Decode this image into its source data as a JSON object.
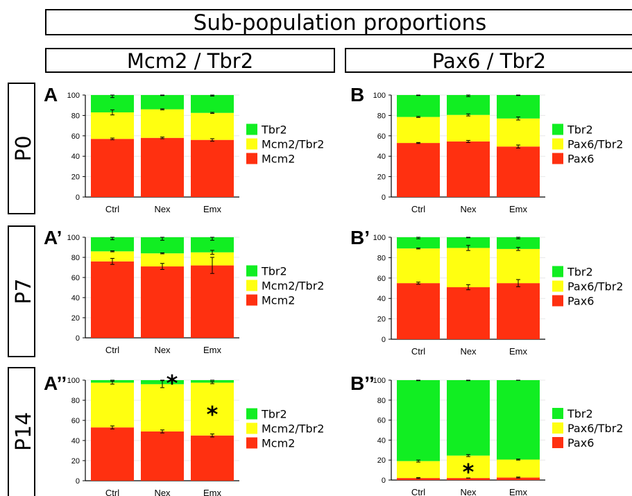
{
  "title": "Sub-population proportions",
  "columns": [
    "Mcm2 / Tbr2",
    "Pax6 / Tbr2"
  ],
  "rows": [
    "P0",
    "P7",
    "P14"
  ],
  "colors": {
    "green": "#11ee22",
    "yellow": "#ffff10",
    "red": "#ff3010",
    "text": "#000000"
  },
  "chart_data": [
    {
      "panel": "A",
      "type": "bar",
      "stacked": true,
      "categories": [
        "Ctrl",
        "Nex",
        "Emx"
      ],
      "series": [
        {
          "name": "Mcm2",
          "color": "#ff3010",
          "values": [
            57,
            58,
            56
          ],
          "errors": [
            0.8,
            0.8,
            1.2
          ]
        },
        {
          "name": "Mcm2/Tbr2",
          "color": "#ffff10",
          "values": [
            26,
            28,
            26.5
          ],
          "errors": [
            2.5,
            0.5,
            0.5
          ]
        },
        {
          "name": "Tbr2",
          "color": "#11ee22",
          "values": [
            17,
            14,
            17.5
          ],
          "errors": [
            2.5,
            0.5,
            1
          ]
        }
      ],
      "ylim": [
        0,
        100
      ],
      "yticks": [
        0,
        20,
        40,
        60,
        80,
        100
      ],
      "legend": "right",
      "annotations": []
    },
    {
      "panel": "B",
      "type": "bar",
      "stacked": true,
      "categories": [
        "Ctrl",
        "Nex",
        "Emx"
      ],
      "series": [
        {
          "name": "Pax6",
          "color": "#ff3010",
          "values": [
            53,
            54.5,
            49.5
          ],
          "errors": [
            0.5,
            1,
            1.5
          ]
        },
        {
          "name": "Pax6/Tbr2",
          "color": "#ffff10",
          "values": [
            25.5,
            26,
            27.5
          ],
          "errors": [
            0.5,
            1,
            1.5
          ]
        },
        {
          "name": "Tbr2",
          "color": "#11ee22",
          "values": [
            21.5,
            19.5,
            23
          ],
          "errors": [
            0.5,
            1.5,
            0.5
          ]
        }
      ],
      "ylim": [
        0,
        100
      ],
      "yticks": [
        0,
        20,
        40,
        60,
        80,
        100
      ],
      "legend": "right",
      "annotations": []
    },
    {
      "panel": "A’",
      "type": "bar",
      "stacked": true,
      "categories": [
        "Ctrl",
        "Nex",
        "Emx"
      ],
      "series": [
        {
          "name": "Mcm2",
          "color": "#ff3010",
          "values": [
            76,
            71,
            72
          ],
          "errors": [
            3,
            3,
            8
          ]
        },
        {
          "name": "Mcm2/Tbr2",
          "color": "#ffff10",
          "values": [
            10,
            13,
            13
          ],
          "errors": [
            0.5,
            0.5,
            2
          ]
        },
        {
          "name": "Tbr2",
          "color": "#11ee22",
          "values": [
            14,
            16,
            15
          ],
          "errors": [
            2.5,
            3,
            3
          ]
        }
      ],
      "ylim": [
        0,
        100
      ],
      "yticks": [
        0,
        20,
        40,
        60,
        80,
        100
      ],
      "legend": "right",
      "annotations": []
    },
    {
      "panel": "B’",
      "type": "bar",
      "stacked": true,
      "categories": [
        "Ctrl",
        "Nex",
        "Emx"
      ],
      "series": [
        {
          "name": "Pax6",
          "color": "#ff3010",
          "values": [
            55,
            51,
            55
          ],
          "errors": [
            1,
            2.5,
            3.5
          ]
        },
        {
          "name": "Pax6/Tbr2",
          "color": "#ffff10",
          "values": [
            34,
            38.5,
            33.5
          ],
          "errors": [
            0.5,
            2.5,
            1.5
          ]
        },
        {
          "name": "Tbr2",
          "color": "#11ee22",
          "values": [
            11,
            10.5,
            11.5
          ],
          "errors": [
            1.5,
            0.5,
            1.5
          ]
        }
      ],
      "ylim": [
        0,
        100
      ],
      "yticks": [
        0,
        20,
        40,
        60,
        80,
        100
      ],
      "legend": "right",
      "annotations": []
    },
    {
      "panel": "A’’",
      "type": "bar",
      "stacked": true,
      "categories": [
        "Ctrl",
        "Nex",
        "Emx"
      ],
      "series": [
        {
          "name": "Mcm2",
          "color": "#ff3010",
          "values": [
            53,
            49,
            45
          ],
          "errors": [
            1.5,
            1.5,
            1.5
          ]
        },
        {
          "name": "Mcm2/Tbr2",
          "color": "#ffff10",
          "values": [
            44.5,
            47,
            52.5
          ],
          "errors": [
            1.5,
            3.5,
            1
          ]
        },
        {
          "name": "Tbr2",
          "color": "#11ee22",
          "values": [
            2.5,
            4,
            2.5
          ],
          "errors": [
            0,
            0,
            0
          ]
        }
      ],
      "ylim": [
        0,
        100
      ],
      "yticks": [
        0,
        20,
        40,
        60,
        80,
        100
      ],
      "legend": "right",
      "annotations": [
        {
          "text": "*",
          "category": "Nex",
          "y": 99
        },
        {
          "text": "*",
          "category": "Emx",
          "y": 68
        }
      ]
    },
    {
      "panel": "B’’",
      "type": "bar",
      "stacked": true,
      "categories": [
        "Ctrl",
        "Nex",
        "Emx"
      ],
      "series": [
        {
          "name": "Pax6",
          "color": "#ff3010",
          "values": [
            2,
            2,
            2.5
          ],
          "errors": [
            0.5,
            0,
            0.5
          ]
        },
        {
          "name": "Pax6/Tbr2",
          "color": "#ffff10",
          "values": [
            17,
            22.5,
            18
          ],
          "errors": [
            1,
            1,
            0.5
          ]
        },
        {
          "name": "Tbr2",
          "color": "#11ee22",
          "values": [
            81,
            75.5,
            79.5
          ],
          "errors": [
            0.5,
            0.5,
            0.2
          ]
        }
      ],
      "ylim": [
        0,
        100
      ],
      "yticks": [
        0,
        20,
        40,
        60,
        80,
        100
      ],
      "legend": "right",
      "annotations": [
        {
          "text": "*",
          "category": "Nex",
          "y": 10
        }
      ]
    }
  ]
}
